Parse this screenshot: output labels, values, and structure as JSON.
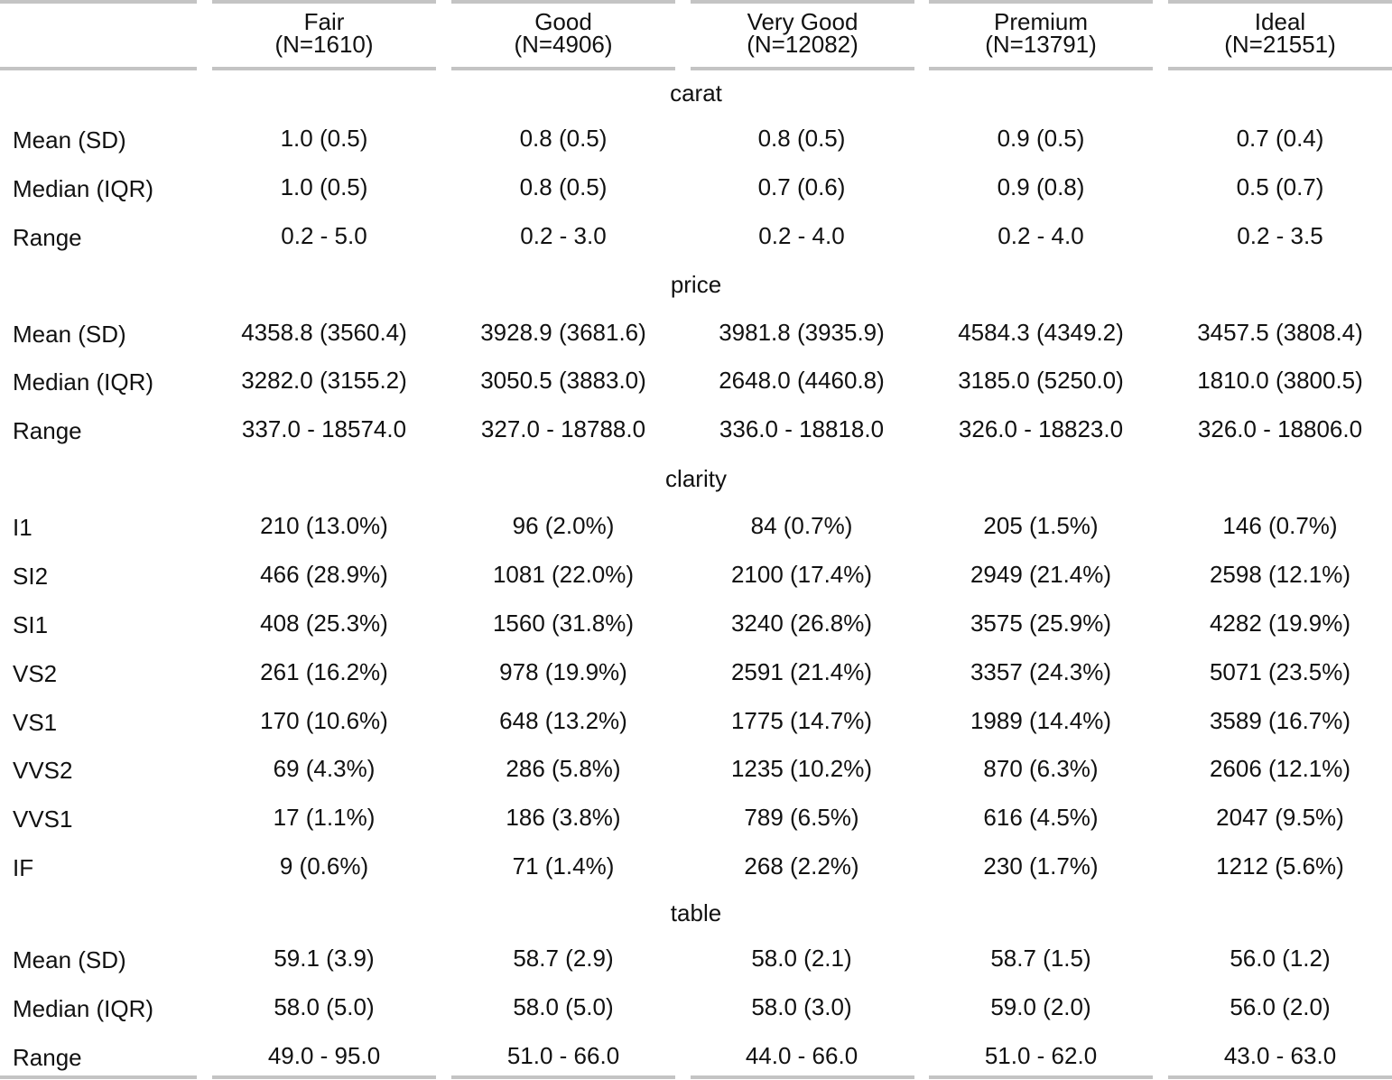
{
  "columns": [
    {
      "name": "Fair",
      "n": "(N=1610)"
    },
    {
      "name": "Good",
      "n": "(N=4906)"
    },
    {
      "name": "Very Good",
      "n": "(N=12082)"
    },
    {
      "name": "Premium",
      "n": "(N=13791)"
    },
    {
      "name": "Ideal",
      "n": "(N=21551)"
    }
  ],
  "sections": [
    {
      "title": "carat",
      "rows": [
        {
          "label": "Mean (SD)",
          "values": [
            "1.0 (0.5)",
            "0.8 (0.5)",
            "0.8 (0.5)",
            "0.9 (0.5)",
            "0.7 (0.4)"
          ]
        },
        {
          "label": "Median (IQR)",
          "values": [
            "1.0 (0.5)",
            "0.8 (0.5)",
            "0.7 (0.6)",
            "0.9 (0.8)",
            "0.5 (0.7)"
          ]
        },
        {
          "label": "Range",
          "values": [
            "0.2 - 5.0",
            "0.2 - 3.0",
            "0.2 - 4.0",
            "0.2 - 4.0",
            "0.2 - 3.5"
          ]
        }
      ]
    },
    {
      "title": "price",
      "rows": [
        {
          "label": "Mean (SD)",
          "values": [
            "4358.8 (3560.4)",
            "3928.9 (3681.6)",
            "3981.8 (3935.9)",
            "4584.3 (4349.2)",
            "3457.5 (3808.4)"
          ]
        },
        {
          "label": "Median (IQR)",
          "values": [
            "3282.0 (3155.2)",
            "3050.5 (3883.0)",
            "2648.0 (4460.8)",
            "3185.0 (5250.0)",
            "1810.0 (3800.5)"
          ]
        },
        {
          "label": "Range",
          "values": [
            "337.0 - 18574.0",
            "327.0 - 18788.0",
            "336.0 - 18818.0",
            "326.0 - 18823.0",
            "326.0 - 18806.0"
          ]
        }
      ]
    },
    {
      "title": "clarity",
      "rows": [
        {
          "label": "I1",
          "values": [
            "210 (13.0%)",
            "96 (2.0%)",
            "84 (0.7%)",
            "205 (1.5%)",
            "146 (0.7%)"
          ]
        },
        {
          "label": "SI2",
          "values": [
            "466 (28.9%)",
            "1081 (22.0%)",
            "2100 (17.4%)",
            "2949 (21.4%)",
            "2598 (12.1%)"
          ]
        },
        {
          "label": "SI1",
          "values": [
            "408 (25.3%)",
            "1560 (31.8%)",
            "3240 (26.8%)",
            "3575 (25.9%)",
            "4282 (19.9%)"
          ]
        },
        {
          "label": "VS2",
          "values": [
            "261 (16.2%)",
            "978 (19.9%)",
            "2591 (21.4%)",
            "3357 (24.3%)",
            "5071 (23.5%)"
          ]
        },
        {
          "label": "VS1",
          "values": [
            "170 (10.6%)",
            "648 (13.2%)",
            "1775 (14.7%)",
            "1989 (14.4%)",
            "3589 (16.7%)"
          ]
        },
        {
          "label": "VVS2",
          "values": [
            "69 (4.3%)",
            "286 (5.8%)",
            "1235 (10.2%)",
            "870 (6.3%)",
            "2606 (12.1%)"
          ]
        },
        {
          "label": "VVS1",
          "values": [
            "17 (1.1%)",
            "186 (3.8%)",
            "789 (6.5%)",
            "616 (4.5%)",
            "2047 (9.5%)"
          ]
        },
        {
          "label": "IF",
          "values": [
            "9 (0.6%)",
            "71 (1.4%)",
            "268 (2.2%)",
            "230 (1.7%)",
            "1212 (5.6%)"
          ]
        }
      ]
    },
    {
      "title": "table",
      "rows": [
        {
          "label": "Mean (SD)",
          "values": [
            "59.1 (3.9)",
            "58.7 (2.9)",
            "58.0 (2.1)",
            "58.7 (1.5)",
            "56.0 (1.2)"
          ]
        },
        {
          "label": "Median (IQR)",
          "values": [
            "58.0 (5.0)",
            "58.0 (5.0)",
            "58.0 (3.0)",
            "59.0 (2.0)",
            "56.0 (2.0)"
          ]
        },
        {
          "label": "Range",
          "values": [
            "49.0 - 95.0",
            "51.0 - 66.0",
            "44.0 - 66.0",
            "51.0 - 62.0",
            "43.0 - 63.0"
          ]
        }
      ]
    }
  ]
}
